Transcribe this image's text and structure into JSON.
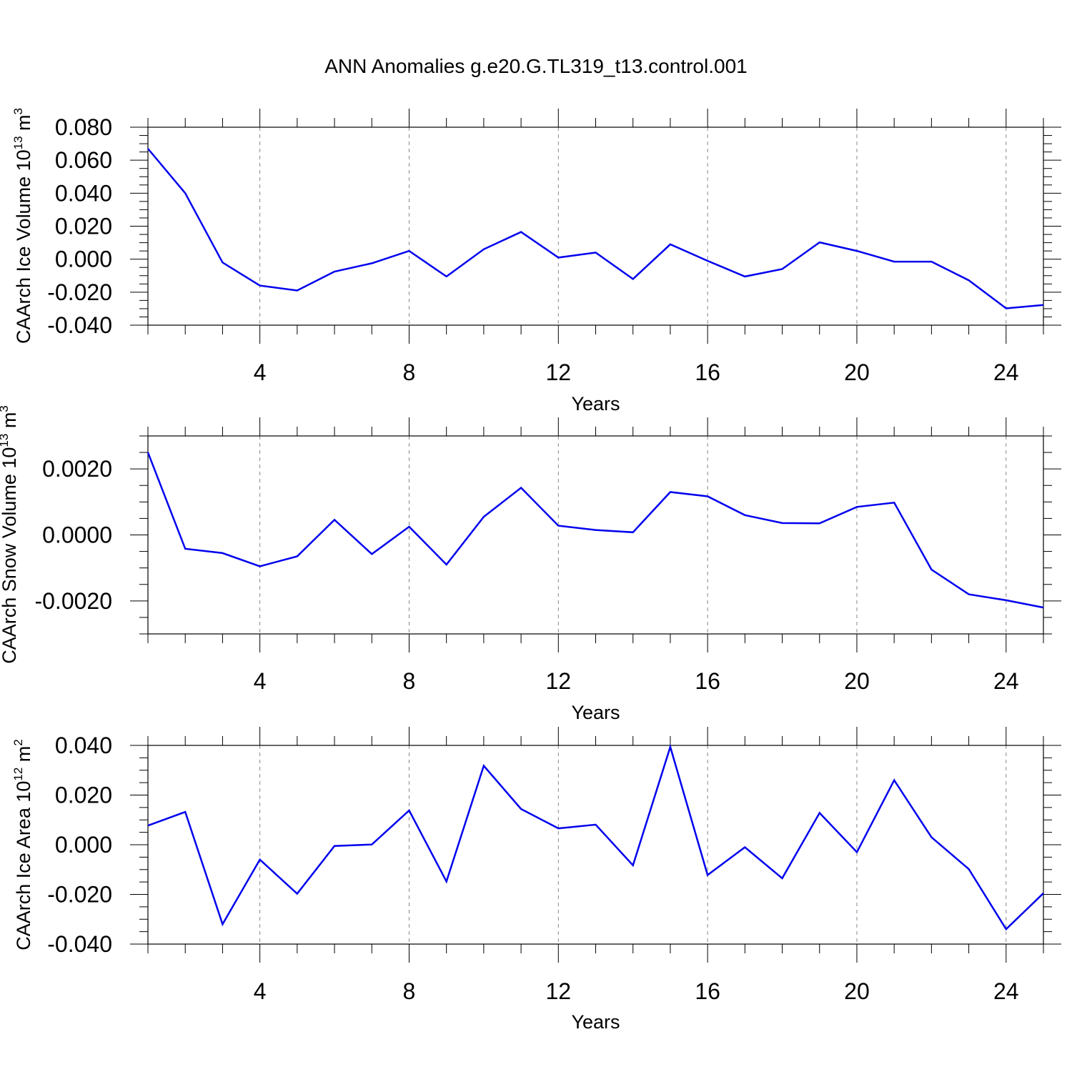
{
  "title": "ANN Anomalies g.e20.G.TL319_t13.control.001",
  "colors": {
    "line": "#0000ee",
    "axis": "#000000",
    "grid": "#888888"
  },
  "chart_data": [
    {
      "type": "line",
      "ylabel": "CAArch Ice Volume 10",
      "ylabel_exp": "13",
      "ylabel_unit": "m",
      "ylabel_unit_exp": "3",
      "xlabel": "Years",
      "xlim": [
        1,
        25
      ],
      "ylim": [
        -0.04,
        0.08
      ],
      "xticks": [
        4,
        8,
        12,
        16,
        20,
        24
      ],
      "xtick_labels": [
        "4",
        "8",
        "12",
        "16",
        "20",
        "24"
      ],
      "yticks": [
        -0.04,
        -0.02,
        0.0,
        0.02,
        0.04,
        0.06,
        0.08
      ],
      "ytick_labels": [
        "-0.040",
        "-0.020",
        "0.000",
        "0.020",
        "0.040",
        "0.060",
        "0.080"
      ],
      "grid": "vertical dashed at labeled x ticks",
      "x": [
        1,
        2,
        3,
        4,
        5,
        6,
        7,
        8,
        9,
        10,
        11,
        12,
        13,
        14,
        15,
        16,
        17,
        18,
        19,
        20,
        21,
        22,
        23,
        24,
        25
      ],
      "values": [
        0.067,
        0.04,
        -0.002,
        -0.016,
        -0.019,
        -0.0075,
        -0.0025,
        0.005,
        -0.0105,
        0.006,
        0.0165,
        0.001,
        0.004,
        -0.012,
        0.009,
        -0.001,
        -0.0105,
        -0.006,
        0.0102,
        0.005,
        -0.0015,
        -0.0015,
        -0.0128,
        -0.0298,
        -0.0278
      ]
    },
    {
      "type": "line",
      "ylabel": "CAArch Snow Volume 10",
      "ylabel_exp": "13",
      "ylabel_unit": "m",
      "ylabel_unit_exp": "3",
      "xlabel": "Years",
      "xlim": [
        1,
        25
      ],
      "ylim": [
        -0.003,
        0.003
      ],
      "xticks": [
        4,
        8,
        12,
        16,
        20,
        24
      ],
      "xtick_labels": [
        "4",
        "8",
        "12",
        "16",
        "20",
        "24"
      ],
      "yticks": [
        -0.002,
        0.0,
        0.002
      ],
      "ytick_labels": [
        "-0.0020",
        "0.0000",
        "0.0020"
      ],
      "grid": "vertical dashed at labeled x ticks",
      "x": [
        1,
        2,
        3,
        4,
        5,
        6,
        7,
        8,
        9,
        10,
        11,
        12,
        13,
        14,
        15,
        16,
        17,
        18,
        19,
        20,
        21,
        22,
        23,
        24,
        25
      ],
      "values": [
        0.0025,
        -0.00042,
        -0.00055,
        -0.00095,
        -0.00065,
        0.00046,
        -0.00058,
        0.00025,
        -0.0009,
        0.00055,
        0.00143,
        0.00028,
        0.00015,
        8e-05,
        0.0013,
        0.00117,
        0.0006,
        0.00036,
        0.00035,
        0.00085,
        0.00098,
        -0.00105,
        -0.0018,
        -0.00198,
        -0.0022
      ]
    },
    {
      "type": "line",
      "ylabel": "CAArch Ice Area 10",
      "ylabel_exp": "12",
      "ylabel_unit": "m",
      "ylabel_unit_exp": "2",
      "xlabel": "Years",
      "xlim": [
        1,
        25
      ],
      "ylim": [
        -0.04,
        0.04
      ],
      "xticks": [
        4,
        8,
        12,
        16,
        20,
        24
      ],
      "xtick_labels": [
        "4",
        "8",
        "12",
        "16",
        "20",
        "24"
      ],
      "yticks": [
        -0.04,
        -0.02,
        0.0,
        0.02,
        0.04
      ],
      "ytick_labels": [
        "-0.040",
        "-0.020",
        "0.000",
        "0.020",
        "0.040"
      ],
      "grid": "vertical dashed at labeled x ticks",
      "x": [
        1,
        2,
        3,
        4,
        5,
        6,
        7,
        8,
        9,
        10,
        11,
        12,
        13,
        14,
        15,
        16,
        17,
        18,
        19,
        20,
        21,
        22,
        23,
        24,
        25
      ],
      "values": [
        0.0077,
        0.0132,
        -0.032,
        -0.006,
        -0.0197,
        -0.0005,
        0.0001,
        0.0138,
        -0.0148,
        0.0318,
        0.0144,
        0.0066,
        0.0081,
        -0.0083,
        0.0394,
        -0.0122,
        -0.001,
        -0.0135,
        0.0128,
        -0.003,
        0.026,
        0.003,
        -0.0098,
        -0.034,
        -0.0195
      ]
    }
  ]
}
